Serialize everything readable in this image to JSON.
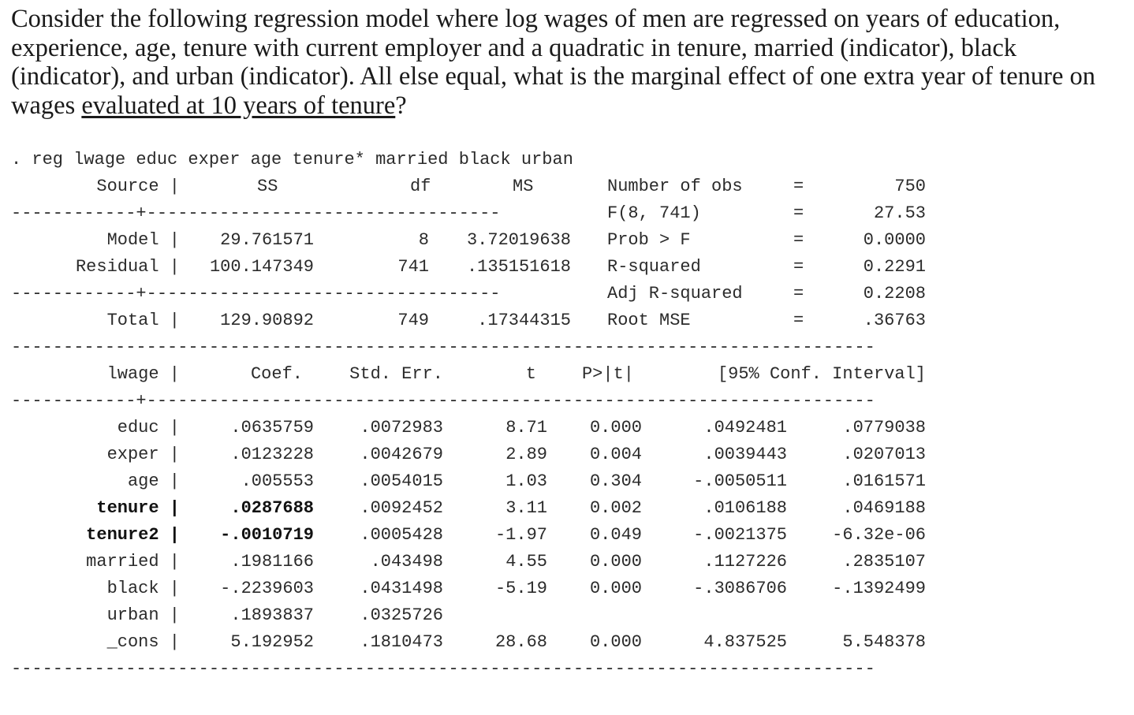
{
  "question": {
    "part1": "Consider the following regression model where log wages of men are regressed on years of education, experience, age, tenure with current employer and a quadratic in tenure, married (indicator), black (indicator), and urban (indicator). All else equal, what is the marginal effect of one extra year of tenure on wages ",
    "underlined": "evaluated at 10 years of tenure",
    "part2": "?"
  },
  "command": ". reg lwage educ exper age tenure* married black urban",
  "anova": {
    "headers": {
      "source": "Source |",
      "ss": "SS",
      "df": "df",
      "ms": "MS"
    },
    "rows": [
      {
        "source": "Model |",
        "ss": "29.761571",
        "df": "8",
        "ms": "3.72019638"
      },
      {
        "source": "Residual |",
        "ss": "100.147349",
        "df": "741",
        "ms": ".135151618"
      },
      {
        "source": "Total |",
        "ss": "129.90892",
        "df": "749",
        "ms": ".17344315"
      }
    ]
  },
  "stats": [
    {
      "label": "Number of obs",
      "eq": "=",
      "value": "750"
    },
    {
      "label": "F(8, 741)",
      "eq": "=",
      "value": "27.53"
    },
    {
      "label": "Prob > F",
      "eq": "=",
      "value": "0.0000"
    },
    {
      "label": "R-squared",
      "eq": "=",
      "value": "0.2291"
    },
    {
      "label": "Adj R-squared",
      "eq": "=",
      "value": "0.2208"
    },
    {
      "label": "Root MSE",
      "eq": "=",
      "value": ".36763"
    }
  ],
  "coef_table": {
    "headers": {
      "var": "lwage |",
      "coef": "Coef.",
      "se": "Std. Err.",
      "t": "t",
      "p": "P>|t|",
      "ci": "[95% Conf. Interval]"
    },
    "rows": [
      {
        "var": "educ |",
        "coef": ".0635759",
        "se": ".0072983",
        "t": "8.71",
        "p": "0.000",
        "lo": ".0492481",
        "hi": ".0779038"
      },
      {
        "var": "exper |",
        "coef": ".0123228",
        "se": ".0042679",
        "t": "2.89",
        "p": "0.004",
        "lo": ".0039443",
        "hi": ".0207013"
      },
      {
        "var": "age |",
        "coef": ".005553",
        "se": ".0054015",
        "t": "1.03",
        "p": "0.304",
        "lo": "-.0050511",
        "hi": ".0161571"
      },
      {
        "var": "tenure |",
        "coef": ".0287688",
        "se": ".0092452",
        "t": "3.11",
        "p": "0.002",
        "lo": ".0106188",
        "hi": ".0469188"
      },
      {
        "var": "tenure2 |",
        "coef": "-.0010719",
        "se": ".0005428",
        "t": "-1.97",
        "p": "0.049",
        "lo": "-.0021375",
        "hi": "-6.32e-06"
      },
      {
        "var": "married |",
        "coef": ".1981166",
        "se": ".043498",
        "t": "4.55",
        "p": "0.000",
        "lo": ".1127226",
        "hi": ".2835107"
      },
      {
        "var": "black |",
        "coef": "-.2239603",
        "se": ".0431498",
        "t": "-5.19",
        "p": "0.000",
        "lo": "-.3086706",
        "hi": "-.1392499"
      },
      {
        "var": "urban |",
        "coef": ".1893837",
        "se": ".0325726",
        "t": "",
        "p": "",
        "lo": "",
        "hi": ""
      },
      {
        "var": "_cons |",
        "coef": "5.192952",
        "se": ".1810473",
        "t": "28.68",
        "p": "0.000",
        "lo": "4.837525",
        "hi": "5.548378"
      }
    ]
  },
  "rules": {
    "short_plus": "------------+----------------------------------",
    "full_plus": "-------------+----------------------------------------------------------------",
    "full": "------------------------------------------------------------------------------"
  }
}
